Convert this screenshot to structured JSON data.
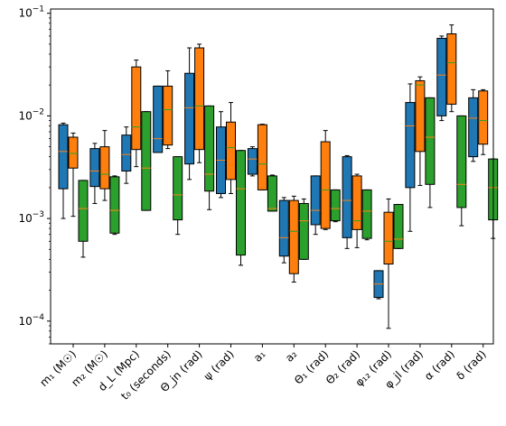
{
  "chart_data": {
    "type": "boxplot",
    "y_scale": "log",
    "ylim": [
      6e-05,
      0.11
    ],
    "y_ticks": [
      {
        "value": 0.1,
        "base": "10",
        "exp": "−1"
      },
      {
        "value": 0.01,
        "base": "10",
        "exp": "−2"
      },
      {
        "value": 0.001,
        "base": "10",
        "exp": "−3"
      },
      {
        "value": 0.0001,
        "base": "10",
        "exp": "−4"
      }
    ],
    "categories": [
      {
        "label": "m₁ (M☉)"
      },
      {
        "label": "m₂ (M☉)"
      },
      {
        "label": "d_L (Mpc)"
      },
      {
        "label": "t₀ (seconds)"
      },
      {
        "label": "Θ_jn (rad)"
      },
      {
        "label": "ψ (rad)"
      },
      {
        "label": "a₁"
      },
      {
        "label": "a₂"
      },
      {
        "label": "Θ₁ (rad)"
      },
      {
        "label": "Θ₂ (rad)"
      },
      {
        "label": "φ₁₂ (rad)"
      },
      {
        "label": "φ_jl (rad)"
      },
      {
        "label": "α (rad)"
      },
      {
        "label": "δ (rad)"
      }
    ],
    "series": [
      {
        "color": "#1f77b4",
        "boxes": [
          {
            "wlo": 0.001,
            "q1": 0.00195,
            "med": 0.0045,
            "q3": 0.0082,
            "whi": 0.0085
          },
          {
            "wlo": 0.0014,
            "q1": 0.00205,
            "med": 0.0029,
            "q3": 0.0048,
            "whi": 0.0054
          },
          {
            "wlo": 0.0022,
            "q1": 0.0029,
            "med": 0.0042,
            "q3": 0.0065,
            "whi": 0.0078
          },
          {
            "wlo": 0.0045,
            "q1": 0.0044,
            "med": 0.006,
            "q3": 0.0195,
            "whi": 0.0195
          },
          {
            "wlo": 0.0024,
            "q1": 0.0034,
            "med": 0.012,
            "q3": 0.026,
            "whi": 0.046
          },
          {
            "wlo": 0.0016,
            "q1": 0.00175,
            "med": 0.0037,
            "q3": 0.0078,
            "whi": 0.011
          },
          {
            "wlo": 0.0026,
            "q1": 0.0027,
            "med": 0.0038,
            "q3": 0.0048,
            "whi": 0.005
          },
          {
            "wlo": 0.00037,
            "q1": 0.00043,
            "med": 0.00065,
            "q3": 0.0015,
            "whi": 0.0016
          },
          {
            "wlo": 0.0007,
            "q1": 0.00087,
            "med": 0.0012,
            "q3": 0.0026,
            "whi": 0.0026
          },
          {
            "wlo": 0.00051,
            "q1": 0.00065,
            "med": 0.0015,
            "q3": 0.004,
            "whi": 0.0041
          },
          {
            "wlo": 0.000165,
            "q1": 0.00017,
            "med": 0.00023,
            "q3": 0.00031,
            "whi": 0.00031
          },
          {
            "wlo": 0.00075,
            "q1": 0.002,
            "med": 0.008,
            "q3": 0.0135,
            "whi": 0.0205
          },
          {
            "wlo": 0.009,
            "q1": 0.01,
            "med": 0.025,
            "q3": 0.057,
            "whi": 0.06
          },
          {
            "wlo": 0.0036,
            "q1": 0.004,
            "med": 0.0095,
            "q3": 0.015,
            "whi": 0.018
          }
        ]
      },
      {
        "color": "#ff7f0e",
        "boxes": [
          {
            "wlo": 0.00105,
            "q1": 0.0031,
            "med": 0.0043,
            "q3": 0.0062,
            "whi": 0.0068
          },
          {
            "wlo": 0.0015,
            "q1": 0.00195,
            "med": 0.0027,
            "q3": 0.005,
            "whi": 0.0072
          },
          {
            "wlo": 0.0032,
            "q1": 0.0047,
            "med": 0.0078,
            "q3": 0.03,
            "whi": 0.035
          },
          {
            "wlo": 0.0048,
            "q1": 0.0052,
            "med": 0.0115,
            "q3": 0.0195,
            "whi": 0.0275
          },
          {
            "wlo": 0.0035,
            "q1": 0.0047,
            "med": 0.0125,
            "q3": 0.046,
            "whi": 0.05
          },
          {
            "wlo": 0.00175,
            "q1": 0.0024,
            "med": 0.0049,
            "q3": 0.0087,
            "whi": 0.0135
          },
          {
            "wlo": 0.0019,
            "q1": 0.0019,
            "med": 0.0034,
            "q3": 0.0082,
            "whi": 0.0083
          },
          {
            "wlo": 0.00024,
            "q1": 0.00029,
            "med": 0.00075,
            "q3": 0.0015,
            "whi": 0.00165
          },
          {
            "wlo": 0.00078,
            "q1": 0.0008,
            "med": 0.0019,
            "q3": 0.0056,
            "whi": 0.0072
          },
          {
            "wlo": 0.00052,
            "q1": 0.00078,
            "med": 0.00095,
            "q3": 0.0026,
            "whi": 0.0027
          },
          {
            "wlo": 8.5e-05,
            "q1": 0.00036,
            "med": 0.0006,
            "q3": 0.00115,
            "whi": 0.00155
          },
          {
            "wlo": 0.0021,
            "q1": 0.0045,
            "med": 0.02,
            "q3": 0.022,
            "whi": 0.024
          },
          {
            "wlo": 0.011,
            "q1": 0.013,
            "med": 0.033,
            "q3": 0.063,
            "whi": 0.077
          },
          {
            "wlo": 0.0042,
            "q1": 0.0053,
            "med": 0.009,
            "q3": 0.0175,
            "whi": 0.018
          }
        ]
      },
      {
        "color": "#2ca02c",
        "boxes": [
          {
            "wlo": 0.00042,
            "q1": 0.0006,
            "med": 0.00125,
            "q3": 0.00235,
            "whi": 0.00235
          },
          {
            "wlo": 0.0007,
            "q1": 0.00072,
            "med": 0.0012,
            "q3": 0.00255,
            "whi": 0.0026
          },
          {
            "wlo": 0.0012,
            "q1": 0.0012,
            "med": 0.0031,
            "q3": 0.011,
            "whi": 0.011
          },
          {
            "wlo": 0.0007,
            "q1": 0.00097,
            "med": 0.0017,
            "q3": 0.004,
            "whi": 0.004
          },
          {
            "wlo": 0.00122,
            "q1": 0.00185,
            "med": 0.0027,
            "q3": 0.0125,
            "whi": 0.0125
          },
          {
            "wlo": 0.00035,
            "q1": 0.00044,
            "med": 0.00195,
            "q3": 0.0046,
            "whi": 0.0046
          },
          {
            "wlo": 0.00118,
            "q1": 0.00118,
            "med": 0.00125,
            "q3": 0.0026,
            "whi": 0.00265
          },
          {
            "wlo": 0.0004,
            "q1": 0.0004,
            "med": 0.00095,
            "q3": 0.0014,
            "whi": 0.00155
          },
          {
            "wlo": 0.00093,
            "q1": 0.00095,
            "med": 0.00125,
            "q3": 0.0019,
            "whi": 0.0019
          },
          {
            "wlo": 0.00062,
            "q1": 0.00064,
            "med": 0.00118,
            "q3": 0.0019,
            "whi": 0.0019
          },
          {
            "wlo": 0.00051,
            "q1": 0.00051,
            "med": 0.00063,
            "q3": 0.00137,
            "whi": 0.00137
          },
          {
            "wlo": 0.00128,
            "q1": 0.00215,
            "med": 0.0062,
            "q3": 0.015,
            "whi": 0.015
          },
          {
            "wlo": 0.00085,
            "q1": 0.00128,
            "med": 0.00215,
            "q3": 0.01,
            "whi": 0.01
          },
          {
            "wlo": 0.00064,
            "q1": 0.00097,
            "med": 0.002,
            "q3": 0.0038,
            "whi": 0.0038
          }
        ]
      }
    ]
  }
}
